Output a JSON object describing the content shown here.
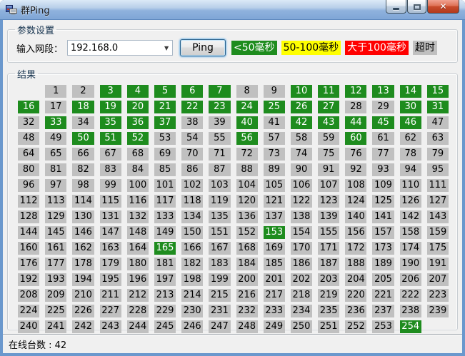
{
  "window": {
    "title": "群Ping"
  },
  "params": {
    "group_label": "参数设置",
    "input_label": "输入网段：",
    "input_value": "192.168.0",
    "ping_button": "Ping",
    "legend": [
      {
        "name": "legend-under-50ms",
        "label": "<50毫秒",
        "bg": "#1E8C1E",
        "fg": "#FFFFFF"
      },
      {
        "name": "legend-50-100ms",
        "label": "50-100毫秒",
        "bg": "#FFFF00",
        "fg": "#000000"
      },
      {
        "name": "legend-over-100ms",
        "label": "大于100毫秒",
        "bg": "#FF0000",
        "fg": "#FFFFFF"
      },
      {
        "name": "legend-timeout",
        "label": "超时",
        "bg": "#C0C0C0",
        "fg": "#000000"
      }
    ]
  },
  "results": {
    "group_label": "结果",
    "grid": {
      "columns": 16,
      "start": 1,
      "end": 254,
      "first_cell_column": 2,
      "online_color": "#1E8C1E",
      "online_text_color": "#FFFFFF",
      "offline_color": "#C0C0C0",
      "offline_text_color": "#000000",
      "online_cells": [
        3,
        4,
        5,
        6,
        7,
        10,
        11,
        12,
        13,
        14,
        15,
        16,
        18,
        19,
        20,
        21,
        22,
        23,
        24,
        25,
        26,
        27,
        30,
        31,
        33,
        35,
        36,
        37,
        40,
        42,
        43,
        44,
        45,
        46,
        50,
        51,
        52,
        56,
        60,
        153,
        165,
        254
      ]
    }
  },
  "status": {
    "online_count_label": "在线台数 : 42"
  }
}
